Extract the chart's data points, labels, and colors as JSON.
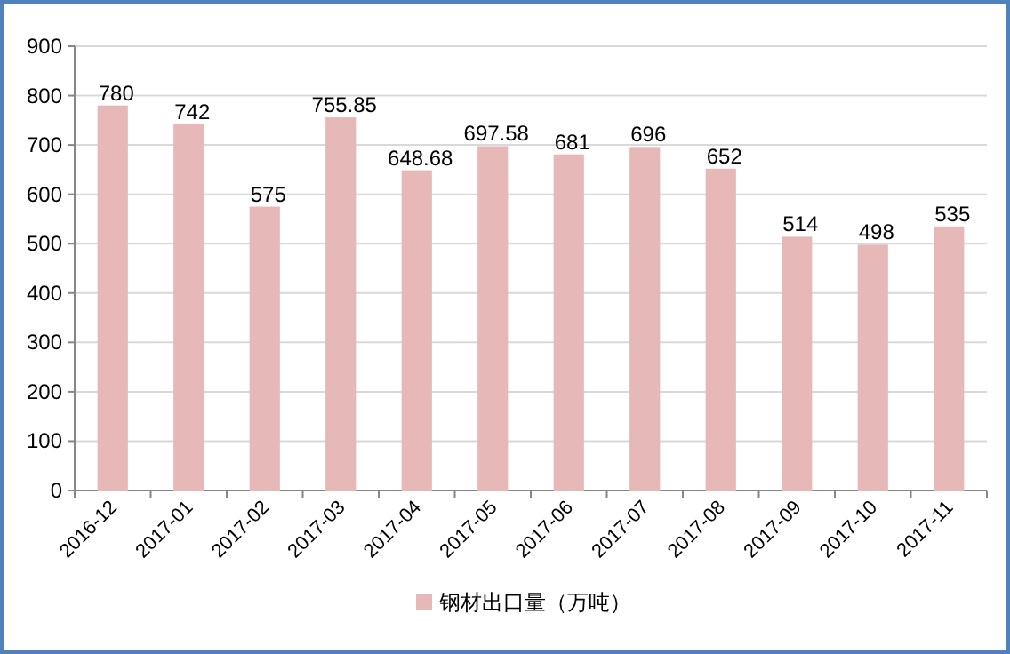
{
  "chart_data": {
    "type": "bar",
    "categories": [
      "2016-12",
      "2017-01",
      "2017-02",
      "2017-03",
      "2017-04",
      "2017-05",
      "2017-06",
      "2017-07",
      "2017-08",
      "2017-09",
      "2017-10",
      "2017-11"
    ],
    "series": [
      {
        "name": "钢材出口量（万吨）",
        "color": "#e6b9b8",
        "values": [
          780,
          742,
          575,
          755.85,
          648.68,
          697.58,
          681,
          696,
          652,
          514,
          498,
          535
        ]
      }
    ],
    "ylim": [
      0,
      900
    ],
    "yticks": [
      0,
      100,
      200,
      300,
      400,
      500,
      600,
      700,
      800,
      900
    ],
    "grid": "y",
    "legend": "bottom",
    "data_labels": true
  }
}
